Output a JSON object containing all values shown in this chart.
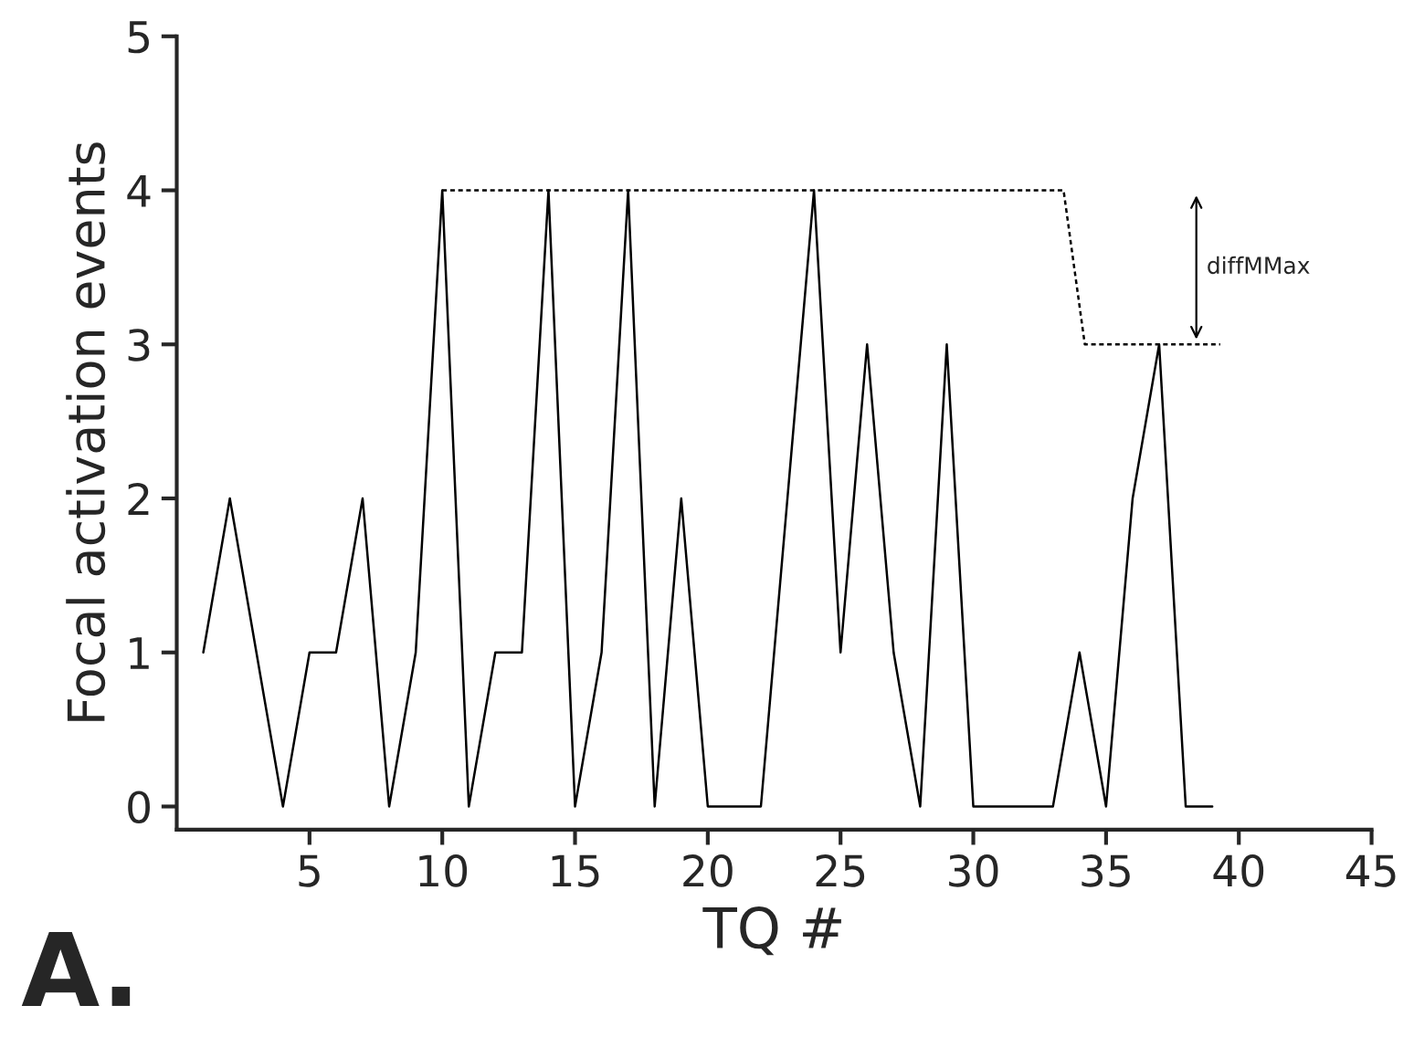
{
  "chart_data": {
    "type": "line",
    "xlabel": "TQ #",
    "ylabel": "Focal activation events",
    "series": [
      {
        "color": "#000000",
        "line_style": "solid",
        "x": [
          1,
          2,
          3,
          4,
          5,
          6,
          7,
          8,
          9,
          10,
          11,
          12,
          13,
          14,
          15,
          16,
          17,
          18,
          19,
          20,
          21,
          22,
          23,
          24,
          25,
          26,
          27,
          28,
          29,
          30,
          31,
          32,
          33,
          34,
          35,
          36,
          37,
          38,
          39
        ],
        "values": [
          1,
          2,
          1,
          0,
          1,
          1,
          2,
          0,
          1,
          4,
          0,
          1,
          1,
          4,
          0,
          1,
          4,
          0,
          2,
          0,
          0,
          0,
          2,
          4,
          1,
          3,
          1,
          0,
          3,
          0,
          0,
          0,
          0,
          1,
          0,
          2,
          3,
          0,
          0
        ]
      },
      {
        "color": "#000000",
        "line_style": "dotted",
        "x": [
          10,
          33.4,
          34.2,
          39.3
        ],
        "values": [
          4,
          4,
          3,
          3
        ]
      }
    ],
    "annotations": [
      "diffMMax",
      "A."
    ],
    "xlim": [
      0,
      45
    ],
    "xticks": [
      5,
      10,
      15,
      20,
      25,
      30,
      35,
      40,
      45
    ],
    "ylim": [
      -0.15,
      5
    ],
    "yticks": [
      0,
      1,
      2,
      3,
      4,
      5
    ],
    "grid": false,
    "marker": "none"
  }
}
